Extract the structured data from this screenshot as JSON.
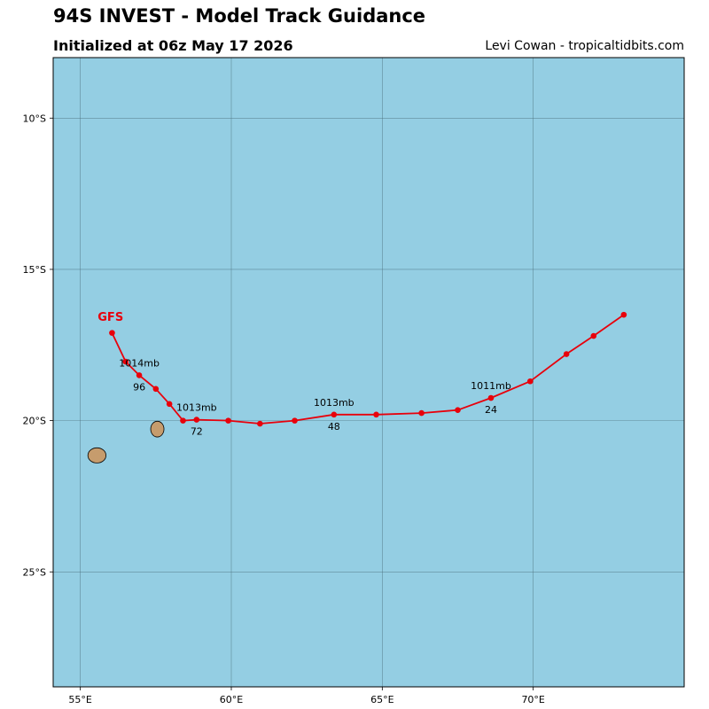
{
  "header": {
    "title": "94S INVEST - Model Track Guidance",
    "subtitle": "Initialized at 06z May 17 2026",
    "credit": "Levi Cowan - tropicaltidbits.com"
  },
  "map": {
    "lon_range": [
      54.1,
      75.0
    ],
    "lat_range": [
      -28.8,
      -8.0
    ],
    "ocean_color": "#94cee3",
    "land_color": "#c69c6d",
    "grid_color": "#4a6e7a",
    "lon_ticks": [
      {
        "value": 55,
        "label": "55°E"
      },
      {
        "value": 60,
        "label": "60°E"
      },
      {
        "value": 65,
        "label": "65°E"
      },
      {
        "value": 70,
        "label": "70°E"
      }
    ],
    "lat_ticks": [
      {
        "value": -10,
        "label": "10°S"
      },
      {
        "value": -15,
        "label": "15°S"
      },
      {
        "value": -20,
        "label": "20°S"
      },
      {
        "value": -25,
        "label": "25°S"
      }
    ],
    "islands": [
      {
        "name": "reunion-island",
        "center": [
          55.55,
          -21.15
        ],
        "radius": [
          0.3,
          0.25
        ]
      },
      {
        "name": "mauritius-island",
        "center": [
          57.55,
          -20.28
        ],
        "radius": [
          0.22,
          0.26
        ]
      }
    ]
  },
  "tracks": [
    {
      "model": "GFS",
      "color": "#e8000b",
      "label_at": [
        56.0,
        -16.7
      ],
      "points": [
        [
          73.0,
          -16.5
        ],
        [
          72.0,
          -17.2
        ],
        [
          71.1,
          -17.8
        ],
        [
          69.9,
          -18.7
        ],
        [
          68.6,
          -19.25
        ],
        [
          67.5,
          -19.65
        ],
        [
          66.3,
          -19.75
        ],
        [
          64.8,
          -19.8
        ],
        [
          63.4,
          -19.8
        ],
        [
          62.1,
          -20.0
        ],
        [
          60.95,
          -20.1
        ],
        [
          59.9,
          -20.0
        ],
        [
          58.85,
          -19.97
        ],
        [
          58.4,
          -20.0
        ],
        [
          57.95,
          -19.45
        ],
        [
          57.5,
          -18.95
        ],
        [
          56.95,
          -18.5
        ],
        [
          56.5,
          -18.05
        ],
        [
          56.05,
          -17.1
        ]
      ],
      "annotations": [
        {
          "pressure": "1011mb",
          "hour": "24",
          "lon": 68.6,
          "lat": -19.25
        },
        {
          "pressure": "1013mb",
          "hour": "48",
          "lon": 63.4,
          "lat": -19.8
        },
        {
          "pressure": "1013mb",
          "hour": "72",
          "lon": 58.85,
          "lat": -19.97
        },
        {
          "pressure": "1014mb",
          "hour": "96",
          "lon": 56.95,
          "lat": -18.5
        }
      ]
    }
  ]
}
